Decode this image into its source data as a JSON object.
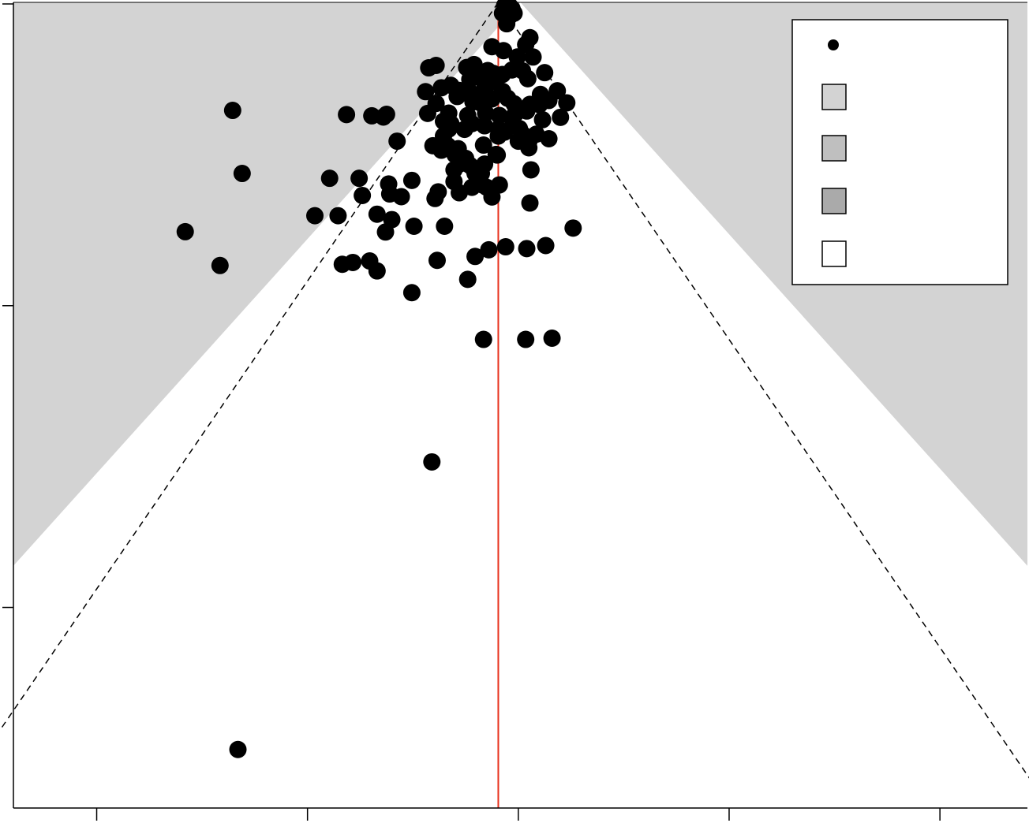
{
  "chart_data": {
    "type": "scatter",
    "title": "",
    "xlabel": "",
    "ylabel": "",
    "x_axis": {
      "ticks": [
        -4,
        -2,
        0,
        2,
        4
      ],
      "tick_labels": []
    },
    "y_axis": {
      "ticks": [
        0,
        1,
        2
      ],
      "tick_labels": [],
      "reversed": true
    },
    "xlim": [
      -4.79,
      4.83
    ],
    "ylim": [
      0,
      2.67
    ],
    "reference_line": {
      "x": -0.19,
      "color": "#e8321e"
    },
    "funnel": {
      "apex_x": 0.02,
      "bands": [
        {
          "z": 2.576,
          "color": "#aaaaaa"
        },
        {
          "z": 1.96,
          "color": "#bfbfbf"
        },
        {
          "z": 1.645,
          "color": "#d3d3d3"
        }
      ],
      "outer_fill": "#d3d3d3",
      "inner_fill": "#ffffff",
      "dashed_center": -0.19,
      "dashed_z": 1.96
    },
    "legend": {
      "position": "top-right",
      "entries": [
        {
          "symbol": "point",
          "color": "#000000",
          "label": ""
        },
        {
          "symbol": "box",
          "color": "#d3d3d3",
          "label": ""
        },
        {
          "symbol": "box",
          "color": "#bfbfbf",
          "label": ""
        },
        {
          "symbol": "box",
          "color": "#aaaaaa",
          "label": ""
        },
        {
          "symbol": "box",
          "color": "#ffffff",
          "label": ""
        }
      ]
    },
    "points": [
      [
        -0.13,
        0.011
      ],
      [
        -0.08,
        0.013
      ],
      [
        -0.06,
        0.021
      ],
      [
        -0.1,
        0.028
      ],
      [
        -0.15,
        0.036
      ],
      [
        -0.04,
        0.036
      ],
      [
        -0.09,
        0.048
      ],
      [
        -0.11,
        0.071
      ],
      [
        0.11,
        0.117
      ],
      [
        0.07,
        0.14
      ],
      [
        -0.25,
        0.147
      ],
      [
        -0.14,
        0.16
      ],
      [
        0.14,
        0.181
      ],
      [
        -0.01,
        0.181
      ],
      [
        -0.78,
        0.209
      ],
      [
        -0.85,
        0.217
      ],
      [
        -0.42,
        0.206
      ],
      [
        -0.49,
        0.216
      ],
      [
        -0.29,
        0.226
      ],
      [
        -0.37,
        0.231
      ],
      [
        -0.24,
        0.235
      ],
      [
        -0.15,
        0.239
      ],
      [
        -0.06,
        0.224
      ],
      [
        0.04,
        0.227
      ],
      [
        0.25,
        0.233
      ],
      [
        -0.21,
        0.253
      ],
      [
        -0.38,
        0.248
      ],
      [
        -0.46,
        0.255
      ],
      [
        -0.26,
        0.265
      ],
      [
        0.09,
        0.253
      ],
      [
        -0.64,
        0.275
      ],
      [
        -0.73,
        0.283
      ],
      [
        -0.56,
        0.292
      ],
      [
        -0.88,
        0.296
      ],
      [
        -0.32,
        0.288
      ],
      [
        -0.15,
        0.295
      ],
      [
        -0.45,
        0.3
      ],
      [
        0.21,
        0.305
      ],
      [
        0.37,
        0.293
      ],
      [
        -0.58,
        0.312
      ],
      [
        -0.78,
        0.335
      ],
      [
        -0.43,
        0.33
      ],
      [
        -0.36,
        0.333
      ],
      [
        -0.25,
        0.32
      ],
      [
        -0.1,
        0.318
      ],
      [
        -0.04,
        0.336
      ],
      [
        0.11,
        0.338
      ],
      [
        0.29,
        0.325
      ],
      [
        0.2,
        0.339
      ],
      [
        0.46,
        0.333
      ],
      [
        -2.71,
        0.358
      ],
      [
        -1.63,
        0.372
      ],
      [
        -1.39,
        0.376
      ],
      [
        -1.25,
        0.371
      ],
      [
        -1.28,
        0.38
      ],
      [
        -0.86,
        0.368
      ],
      [
        -0.66,
        0.367
      ],
      [
        -0.48,
        0.375
      ],
      [
        -0.31,
        0.367
      ],
      [
        -0.18,
        0.375
      ],
      [
        -0.03,
        0.37
      ],
      [
        0.08,
        0.36
      ],
      [
        0.23,
        0.389
      ],
      [
        0.4,
        0.381
      ],
      [
        -0.71,
        0.394
      ],
      [
        -0.64,
        0.402
      ],
      [
        -0.44,
        0.402
      ],
      [
        -0.32,
        0.409
      ],
      [
        -0.19,
        0.42
      ],
      [
        -0.05,
        0.4
      ],
      [
        0.01,
        0.418
      ],
      [
        -0.13,
        0.43
      ],
      [
        -0.66,
        0.42
      ],
      [
        -0.51,
        0.421
      ],
      [
        0.04,
        0.437
      ],
      [
        0.17,
        0.437
      ],
      [
        0.29,
        0.452
      ],
      [
        -1.15,
        0.46
      ],
      [
        -0.71,
        0.443
      ],
      [
        -0.19,
        0.443
      ],
      [
        0.0,
        0.46
      ],
      [
        -0.81,
        0.475
      ],
      [
        -0.67,
        0.475
      ],
      [
        -0.57,
        0.485
      ],
      [
        -0.33,
        0.473
      ],
      [
        -0.73,
        0.49
      ],
      [
        -0.6,
        0.505
      ],
      [
        -0.21,
        0.504
      ],
      [
        -0.2,
        0.506
      ],
      [
        0.1,
        0.482
      ],
      [
        0.1,
        0.461
      ],
      [
        -0.5,
        0.517
      ],
      [
        -0.56,
        0.536
      ],
      [
        -0.32,
        0.536
      ],
      [
        -0.42,
        0.555
      ],
      [
        -0.46,
        0.54
      ],
      [
        -0.61,
        0.555
      ],
      [
        -0.35,
        0.567
      ],
      [
        -0.41,
        0.567
      ],
      [
        -2.62,
        0.567
      ],
      [
        0.12,
        0.555
      ],
      [
        -1.79,
        0.583
      ],
      [
        -1.51,
        0.583
      ],
      [
        -1.01,
        0.59
      ],
      [
        -0.61,
        0.594
      ],
      [
        -0.44,
        0.613
      ],
      [
        -0.3,
        0.613
      ],
      [
        -0.34,
        0.605
      ],
      [
        -0.18,
        0.605
      ],
      [
        -0.56,
        0.631
      ],
      [
        -0.76,
        0.628
      ],
      [
        -1.23,
        0.602
      ],
      [
        -1.22,
        0.635
      ],
      [
        -1.48,
        0.64
      ],
      [
        -1.11,
        0.644
      ],
      [
        -0.79,
        0.65
      ],
      [
        -0.25,
        0.645
      ],
      [
        0.11,
        0.665
      ],
      [
        -1.93,
        0.707
      ],
      [
        -1.71,
        0.707
      ],
      [
        -1.34,
        0.702
      ],
      [
        -1.2,
        0.72
      ],
      [
        -0.99,
        0.742
      ],
      [
        -1.26,
        0.761
      ],
      [
        -0.7,
        0.742
      ],
      [
        0.52,
        0.748
      ],
      [
        -0.28,
        0.82
      ],
      [
        -0.12,
        0.81
      ],
      [
        0.08,
        0.816
      ],
      [
        0.26,
        0.806
      ],
      [
        -3.16,
        0.76
      ],
      [
        -2.83,
        0.872
      ],
      [
        -1.57,
        0.862
      ],
      [
        -1.41,
        0.857
      ],
      [
        -1.67,
        0.868
      ],
      [
        -1.34,
        0.89
      ],
      [
        -1.01,
        0.962
      ],
      [
        -0.48,
        0.918
      ],
      [
        -0.41,
        0.842
      ],
      [
        -0.77,
        0.855
      ],
      [
        -0.33,
        1.117
      ],
      [
        0.07,
        1.117
      ],
      [
        0.32,
        1.113
      ],
      [
        -0.82,
        1.523
      ],
      [
        -2.66,
        2.476
      ]
    ]
  }
}
